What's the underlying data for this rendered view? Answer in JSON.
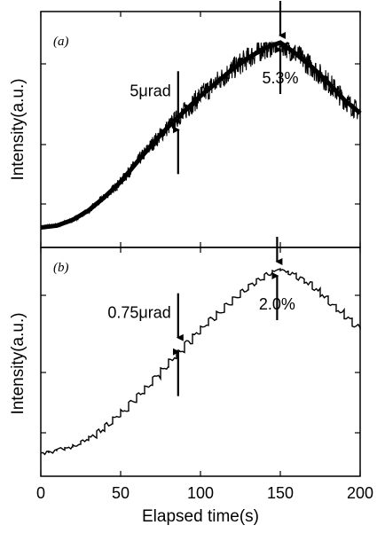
{
  "chart_data": [
    {
      "type": "line",
      "panel_label": "(a)",
      "xlabel": "",
      "ylabel": "Intensity(a.u.)",
      "xlim": [
        0,
        200
      ],
      "ylim": [
        0,
        1
      ],
      "x_ticks": [
        0,
        50,
        100,
        150,
        200
      ],
      "y_tick_labels": "none",
      "grid": false,
      "series": [
        {
          "x": [
            0,
            10,
            20,
            30,
            40,
            50,
            60,
            70,
            80,
            90,
            100,
            110,
            120,
            130,
            140,
            150,
            160,
            170,
            180,
            190,
            200
          ],
          "values": [
            0.03,
            0.04,
            0.07,
            0.12,
            0.19,
            0.27,
            0.37,
            0.47,
            0.56,
            0.64,
            0.72,
            0.79,
            0.86,
            0.92,
            0.97,
            1.0,
            0.94,
            0.87,
            0.79,
            0.7,
            0.63
          ],
          "noise_band": 0.06,
          "color": "#000000"
        }
      ],
      "annotations": [
        {
          "text": "5μrad",
          "x": 86,
          "y": 0.58,
          "arrows": "down-above-and-up-below"
        },
        {
          "text": "5.3%",
          "x": 150,
          "y": 1.0,
          "arrows": "down-above-and-up-below"
        }
      ]
    },
    {
      "type": "line",
      "panel_label": "(b)",
      "xlabel": "Elapsed time(s)",
      "ylabel": "Intensity(a.u.)",
      "xlim": [
        0,
        200
      ],
      "ylim": [
        0,
        1
      ],
      "x_ticks": [
        0,
        50,
        100,
        150,
        200
      ],
      "y_tick_labels": "none",
      "grid": false,
      "series": [
        {
          "x": [
            0,
            10,
            20,
            30,
            40,
            50,
            60,
            70,
            80,
            90,
            100,
            110,
            120,
            130,
            140,
            150,
            160,
            170,
            180,
            190,
            200
          ],
          "values": [
            0.0,
            0.02,
            0.04,
            0.08,
            0.14,
            0.22,
            0.3,
            0.39,
            0.49,
            0.58,
            0.67,
            0.75,
            0.83,
            0.9,
            0.96,
            1.0,
            0.96,
            0.91,
            0.83,
            0.75,
            0.67
          ],
          "step_width": 5,
          "noise_band": 0.02,
          "color": "#000000"
        }
      ],
      "annotations": [
        {
          "text": "0.75μrad",
          "x": 86,
          "y": 0.59,
          "arrows": "down-above-and-up-below"
        },
        {
          "text": "2.0%",
          "x": 148,
          "y": 1.0,
          "arrows": "down-above-and-up-below"
        }
      ]
    }
  ]
}
